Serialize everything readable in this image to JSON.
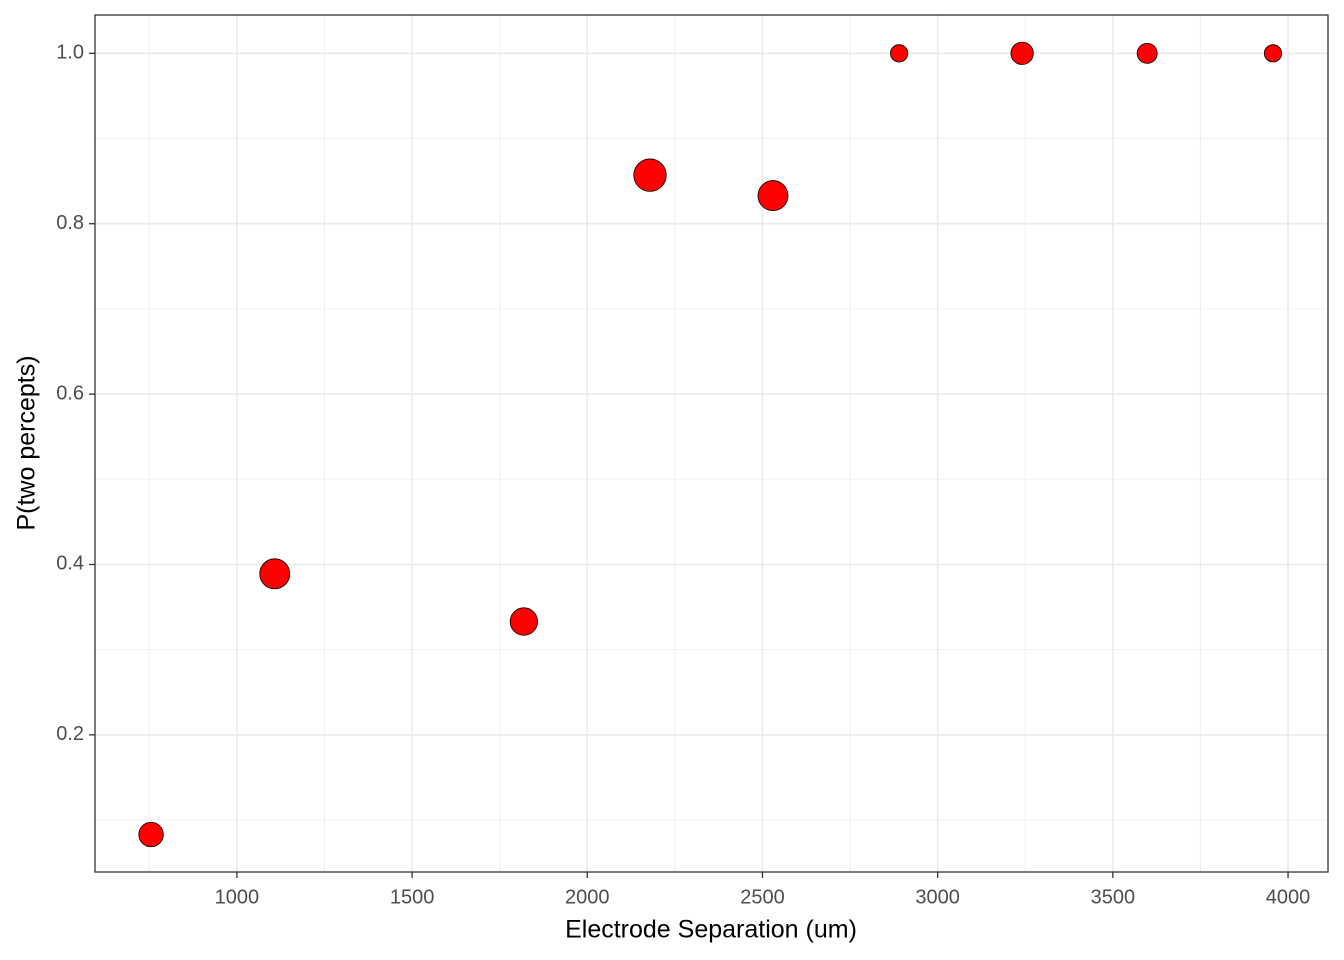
{
  "chart_data": {
    "type": "scatter",
    "x_label": "Electrode Separation (um)",
    "y_label": "P(two percepts)",
    "series": [
      {
        "color": "#ff0000",
        "x": [
          755,
          1108,
          1819,
          2179,
          2530,
          2890,
          3241,
          3598,
          3957
        ],
        "values": [
          0.083,
          0.389,
          0.333,
          0.857,
          0.833,
          1,
          1,
          1,
          1
        ],
        "sizes": [
          12,
          18,
          15,
          21,
          18,
          6,
          10,
          8,
          6
        ]
      }
    ],
    "xlim": [
      595,
      4114
    ],
    "xticks": [
      1000,
      1500,
      2000,
      2500,
      3000,
      3500,
      4000
    ],
    "xminor": [
      750,
      1250,
      1750,
      2250,
      2750,
      3250,
      3750
    ],
    "ylim": [
      0.039,
      1.045
    ],
    "yticks": [
      0.2,
      0.4,
      0.6,
      0.8,
      {
        "value": 1,
        "label": "1.0"
      }
    ],
    "yminor": [
      0.1,
      0.3,
      0.5,
      0.7,
      0.9
    ],
    "grid": true
  }
}
